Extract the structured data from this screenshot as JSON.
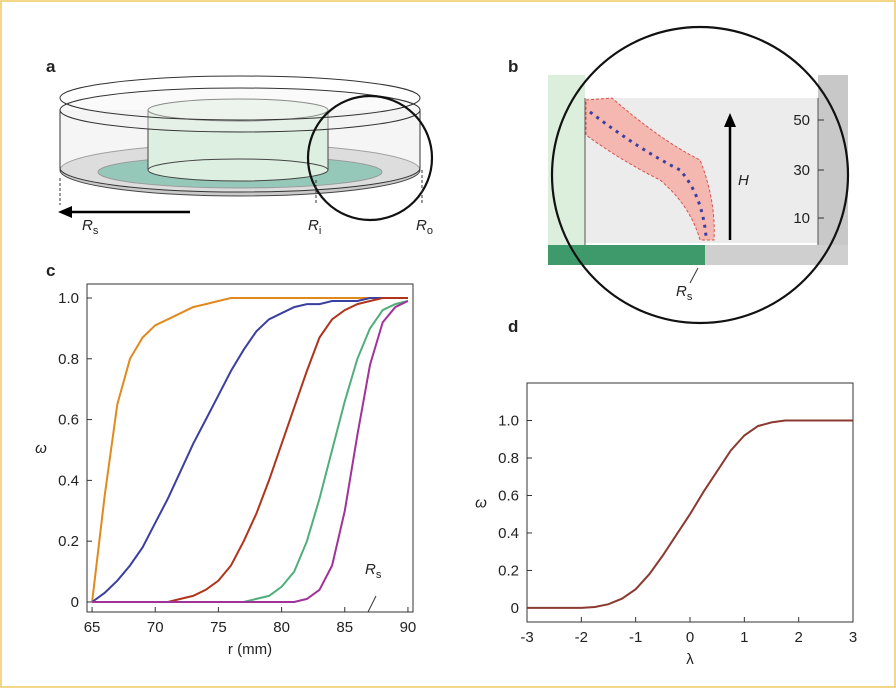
{
  "panels": {
    "a": {
      "letter": "a",
      "labels": [
        {
          "main": "R",
          "sub": "s"
        },
        {
          "main": "R",
          "sub": "i"
        },
        {
          "main": "R",
          "sub": "o"
        }
      ]
    },
    "b": {
      "letter": "b",
      "ticks": [
        50,
        30,
        10
      ],
      "height_label": "H",
      "radius_label": {
        "main": "R",
        "sub": "s"
      }
    }
  },
  "chart_data": [
    {
      "type": "line",
      "panel": "c",
      "x_label": "r (mm)",
      "y_label": "ω",
      "annotation": {
        "main": "R",
        "sub": "s"
      },
      "x": [
        65,
        66,
        67,
        68,
        69,
        70,
        71,
        72,
        73,
        74,
        75,
        76,
        77,
        78,
        79,
        80,
        81,
        82,
        83,
        84,
        85,
        86,
        87,
        88,
        89,
        90
      ],
      "series": [
        {
          "color": "#e08a1e",
          "values": [
            0,
            0.35,
            0.65,
            0.8,
            0.87,
            0.91,
            0.93,
            0.95,
            0.97,
            0.98,
            0.99,
            1,
            1,
            1,
            1,
            1,
            1,
            1,
            1,
            1,
            1,
            1,
            1,
            1,
            1,
            1
          ]
        },
        {
          "color": "#3a3fa0",
          "values": [
            0,
            0.03,
            0.07,
            0.12,
            0.18,
            0.26,
            0.34,
            0.43,
            0.52,
            0.6,
            0.68,
            0.76,
            0.83,
            0.89,
            0.93,
            0.95,
            0.97,
            0.98,
            0.98,
            0.99,
            0.99,
            0.99,
            1,
            1,
            1,
            1
          ]
        },
        {
          "color": "#b0341c",
          "values": [
            0,
            0,
            0,
            0,
            0,
            0,
            0,
            0.01,
            0.02,
            0.04,
            0.07,
            0.12,
            0.2,
            0.29,
            0.4,
            0.52,
            0.64,
            0.76,
            0.87,
            0.93,
            0.96,
            0.98,
            0.99,
            1,
            1,
            1
          ]
        },
        {
          "color": "#4fae7a",
          "values": [
            0,
            0,
            0,
            0,
            0,
            0,
            0,
            0,
            0,
            0,
            0,
            0,
            0,
            0.01,
            0.02,
            0.05,
            0.1,
            0.2,
            0.34,
            0.5,
            0.66,
            0.8,
            0.9,
            0.96,
            0.98,
            0.99
          ]
        },
        {
          "color": "#a0329a",
          "values": [
            0,
            0,
            0,
            0,
            0,
            0,
            0,
            0,
            0,
            0,
            0,
            0,
            0,
            0,
            0,
            0,
            0,
            0.01,
            0.04,
            0.12,
            0.3,
            0.55,
            0.78,
            0.92,
            0.97,
            0.99
          ]
        }
      ],
      "xlim": [
        64.6,
        90.4
      ],
      "xticks": [
        65,
        70,
        75,
        80,
        85,
        90
      ],
      "ylim": [
        -0.033,
        1.046
      ],
      "yticks": [
        0,
        0.2,
        0.4,
        0.6,
        0.8,
        {
          "value": 1,
          "label": "1.0"
        }
      ]
    },
    {
      "type": "line",
      "panel": "d",
      "x_label": "λ",
      "y_label": "ω",
      "x": [
        -3,
        -2.75,
        -2.5,
        -2.25,
        -2,
        -1.75,
        -1.5,
        -1.25,
        -1,
        -0.75,
        -0.5,
        -0.25,
        0,
        0.25,
        0.5,
        0.75,
        1,
        1.25,
        1.5,
        1.75,
        2,
        2.25,
        2.5,
        2.75,
        3
      ],
      "series": [
        {
          "color": "#8a3a30",
          "values": [
            0,
            0,
            0,
            0,
            0,
            0.005,
            0.02,
            0.05,
            0.1,
            0.18,
            0.28,
            0.39,
            0.5,
            0.62,
            0.73,
            0.84,
            0.92,
            0.97,
            0.99,
            1,
            1,
            1,
            1,
            1,
            1
          ]
        }
      ],
      "xlim": [
        -3,
        3
      ],
      "xticks": [
        -3,
        -2,
        -1,
        0,
        1,
        2,
        3
      ],
      "ylim": [
        -0.075,
        1.2
      ],
      "yticks": [
        0,
        0.2,
        0.4,
        0.6,
        0.8,
        {
          "value": 1,
          "label": "1.0"
        }
      ]
    }
  ]
}
